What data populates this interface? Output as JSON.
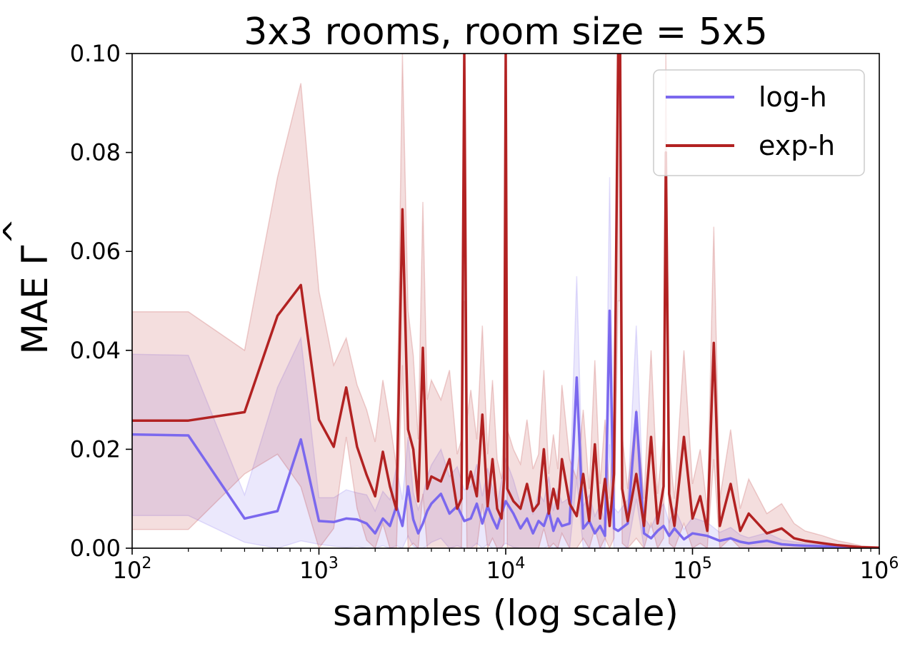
{
  "chart_data": {
    "type": "line",
    "title": "3x3 rooms, room size = 5x5",
    "xlabel": "samples (log scale)",
    "ylabel": "MAE",
    "ylabel_symbol": "Γ",
    "ylabel_hat": "^",
    "xscale": "log",
    "xlim": [
      100,
      1000000
    ],
    "ylim": [
      0,
      0.1
    ],
    "grid": false,
    "legend_position": "top-right",
    "x_ticks": [
      {
        "value": 100,
        "base": "10",
        "exp": "2"
      },
      {
        "value": 1000,
        "base": "10",
        "exp": "3"
      },
      {
        "value": 10000,
        "base": "10",
        "exp": "4"
      },
      {
        "value": 100000,
        "base": "10",
        "exp": "5"
      },
      {
        "value": 1000000,
        "base": "10",
        "exp": "6"
      }
    ],
    "y_ticks": [
      {
        "value": 0,
        "label": "0.00"
      },
      {
        "value": 0.02,
        "label": "0.02"
      },
      {
        "value": 0.04,
        "label": "0.04"
      },
      {
        "value": 0.06,
        "label": "0.06"
      },
      {
        "value": 0.08,
        "label": "0.08"
      },
      {
        "value": 0.1,
        "label": "0.10"
      }
    ],
    "series": [
      {
        "name": "log-h",
        "color": "#7b68ee",
        "x": [
          100,
          200,
          400,
          600,
          800,
          1000,
          1200,
          1400,
          1600,
          1800,
          2000,
          2200,
          2400,
          2600,
          2800,
          3000,
          3200,
          3400,
          3600,
          3800,
          4000,
          4500,
          5000,
          5500,
          6000,
          6500,
          7000,
          7500,
          8000,
          8500,
          9000,
          9500,
          10000,
          11000,
          12000,
          13000,
          14000,
          15000,
          16000,
          17000,
          18000,
          19000,
          20000,
          22000,
          24000,
          26000,
          28000,
          30000,
          32000,
          34000,
          36000,
          38000,
          40000,
          45000,
          50000,
          55000,
          60000,
          65000,
          70000,
          75000,
          80000,
          90000,
          100000,
          120000,
          140000,
          160000,
          180000,
          200000,
          250000,
          300000,
          350000,
          400000,
          500000,
          600000,
          700000,
          800000,
          1000000
        ],
        "values": [
          0.023,
          0.0228,
          0.006,
          0.0075,
          0.022,
          0.0055,
          0.0053,
          0.006,
          0.0058,
          0.005,
          0.003,
          0.006,
          0.0045,
          0.0085,
          0.0045,
          0.0125,
          0.0058,
          0.003,
          0.005,
          0.0075,
          0.009,
          0.011,
          0.007,
          0.0085,
          0.0055,
          0.006,
          0.009,
          0.005,
          0.0085,
          0.006,
          0.004,
          0.007,
          0.0095,
          0.007,
          0.004,
          0.006,
          0.003,
          0.0055,
          0.0045,
          0.0075,
          0.0035,
          0.006,
          0.0045,
          0.005,
          0.0345,
          0.004,
          0.0055,
          0.003,
          0.0045,
          0.0025,
          0.048,
          0.004,
          0.0035,
          0.005,
          0.0275,
          0.003,
          0.002,
          0.0035,
          0.0045,
          0.0025,
          0.004,
          0.0018,
          0.003,
          0.0025,
          0.0015,
          0.002,
          0.0013,
          0.001,
          0.0015,
          0.0008,
          0.0006,
          0.0005,
          0.0004,
          0.0003,
          0.0002,
          0.0001,
          5e-05
        ],
        "upper": [
          0.0392,
          0.039,
          0.0108,
          0.0325,
          0.0425,
          0.0102,
          0.0102,
          0.0118,
          0.0112,
          0.0108,
          0.0075,
          0.0115,
          0.0098,
          0.0165,
          0.0098,
          0.0225,
          0.0112,
          0.0078,
          0.0105,
          0.0145,
          0.0168,
          0.02,
          0.0145,
          0.0165,
          0.0118,
          0.0125,
          0.017,
          0.0105,
          0.0162,
          0.0122,
          0.0088,
          0.0138,
          0.018,
          0.0138,
          0.0088,
          0.0122,
          0.0068,
          0.0112,
          0.0095,
          0.0145,
          0.0075,
          0.0118,
          0.0092,
          0.0102,
          0.055,
          0.0085,
          0.0108,
          0.0065,
          0.0088,
          0.0052,
          0.075,
          0.0082,
          0.0072,
          0.0098,
          0.045,
          0.0062,
          0.0042,
          0.0072,
          0.009,
          0.0052,
          0.0082,
          0.0038,
          0.0062,
          0.0052,
          0.0032,
          0.0042,
          0.0027,
          0.0021,
          0.0031,
          0.0017,
          0.0013,
          0.001,
          0.0008,
          0.0006,
          0.0004,
          0.0002,
          0.0001
        ],
        "lower": [
          0.0066,
          0.0066,
          0.0012,
          0,
          0.0015,
          0.0008,
          0.0004,
          0.0002,
          0.0004,
          0,
          0,
          0.0005,
          0,
          0.0005,
          0,
          0.0025,
          0.0004,
          0,
          0,
          0.0005,
          0.0012,
          0.002,
          0,
          0.0005,
          0,
          0,
          0.001,
          0,
          0.0008,
          0,
          0,
          0.0002,
          0.001,
          0.0002,
          0,
          0,
          0,
          0,
          0,
          0.0005,
          0,
          0.0002,
          0,
          0,
          0.014,
          0,
          0.0002,
          0,
          0.0002,
          0,
          0.021,
          0,
          0,
          0.0002,
          0.01,
          0,
          0,
          0,
          0,
          0,
          0,
          0,
          0,
          0,
          0,
          0,
          0,
          0,
          0,
          0,
          0,
          0,
          0,
          0,
          0,
          0,
          0
        ]
      },
      {
        "name": "exp-h",
        "color": "#b22222",
        "x": [
          100,
          200,
          400,
          600,
          800,
          1000,
          1200,
          1400,
          1600,
          1800,
          2000,
          2200,
          2400,
          2600,
          2800,
          3000,
          3200,
          3400,
          3600,
          3800,
          4000,
          4500,
          5000,
          5500,
          5800,
          6000,
          6200,
          6500,
          7000,
          7500,
          8000,
          8500,
          9000,
          9500,
          9800,
          10000,
          10200,
          11000,
          12000,
          13000,
          14000,
          15000,
          16000,
          17000,
          18000,
          19000,
          20000,
          22000,
          24000,
          26000,
          28000,
          30000,
          32000,
          34000,
          36000,
          38000,
          40000,
          41000,
          42000,
          45000,
          50000,
          55000,
          60000,
          65000,
          70000,
          72000,
          75000,
          80000,
          90000,
          100000,
          110000,
          120000,
          130000,
          140000,
          160000,
          180000,
          200000,
          250000,
          300000,
          350000,
          400000,
          500000,
          600000,
          700000,
          800000,
          1000000
        ],
        "values": [
          0.0258,
          0.0258,
          0.0275,
          0.047,
          0.0532,
          0.026,
          0.0205,
          0.0325,
          0.0205,
          0.0148,
          0.0105,
          0.0195,
          0.0125,
          0.0078,
          0.0685,
          0.024,
          0.02,
          0.0095,
          0.0405,
          0.012,
          0.0145,
          0.0135,
          0.018,
          0.008,
          0.01,
          0.1,
          0.012,
          0.0155,
          0.0105,
          0.027,
          0.0085,
          0.018,
          0.008,
          0.006,
          0.014,
          0.1,
          0.012,
          0.0095,
          0.008,
          0.013,
          0.0075,
          0.009,
          0.02,
          0.007,
          0.012,
          0.008,
          0.018,
          0.009,
          0.0065,
          0.015,
          0.0055,
          0.021,
          0.006,
          0.014,
          0.0045,
          0.015,
          0.1,
          0.1,
          0.012,
          0.0055,
          0.015,
          0.0045,
          0.0225,
          0.005,
          0.0125,
          0.08,
          0.011,
          0.0045,
          0.0225,
          0.006,
          0.0105,
          0.0035,
          0.0415,
          0.0045,
          0.013,
          0.0035,
          0.007,
          0.003,
          0.004,
          0.002,
          0.0015,
          0.001,
          0.0006,
          0.0004,
          0.0002,
          0.0001
        ],
        "upper": [
          0.0478,
          0.0478,
          0.04,
          0.075,
          0.094,
          0.052,
          0.037,
          0.0425,
          0.033,
          0.028,
          0.0215,
          0.034,
          0.0255,
          0.0165,
          0.1,
          0.048,
          0.039,
          0.022,
          0.07,
          0.03,
          0.034,
          0.03,
          0.036,
          0.019,
          0.022,
          0.1,
          0.026,
          0.032,
          0.022,
          0.045,
          0.019,
          0.034,
          0.018,
          0.014,
          0.027,
          0.1,
          0.024,
          0.02,
          0.017,
          0.026,
          0.016,
          0.019,
          0.036,
          0.015,
          0.023,
          0.016,
          0.033,
          0.018,
          0.014,
          0.028,
          0.012,
          0.038,
          0.013,
          0.026,
          0.01,
          0.028,
          0.1,
          0.1,
          0.023,
          0.012,
          0.028,
          0.01,
          0.04,
          0.011,
          0.023,
          0.1,
          0.021,
          0.01,
          0.04,
          0.013,
          0.02,
          0.008,
          0.065,
          0.01,
          0.024,
          0.008,
          0.014,
          0.007,
          0.009,
          0.005,
          0.0035,
          0.0025,
          0.0015,
          0.001,
          0.0005,
          0.0002
        ],
        "lower": [
          0.0038,
          0.0038,
          0.015,
          0.019,
          0.0124,
          0,
          0.004,
          0.0225,
          0.008,
          0.0016,
          0,
          0.005,
          0,
          0,
          0.037,
          0,
          0.001,
          0,
          0.011,
          0,
          0,
          0,
          0,
          0,
          0,
          0.05,
          0,
          0,
          0,
          0.009,
          0,
          0.002,
          0,
          0,
          0.001,
          0.05,
          0,
          0,
          0,
          0,
          0,
          0,
          0.004,
          0,
          0.001,
          0,
          0.003,
          0,
          0,
          0.002,
          0,
          0.004,
          0,
          0.002,
          0,
          0.002,
          0.05,
          0.05,
          0.001,
          0,
          0.002,
          0,
          0.005,
          0,
          0.002,
          0.06,
          0.001,
          0,
          0.005,
          0,
          0.001,
          0,
          0.018,
          0,
          0.002,
          0,
          0,
          0,
          0,
          0,
          0,
          0,
          0,
          0,
          0,
          0
        ]
      }
    ]
  }
}
